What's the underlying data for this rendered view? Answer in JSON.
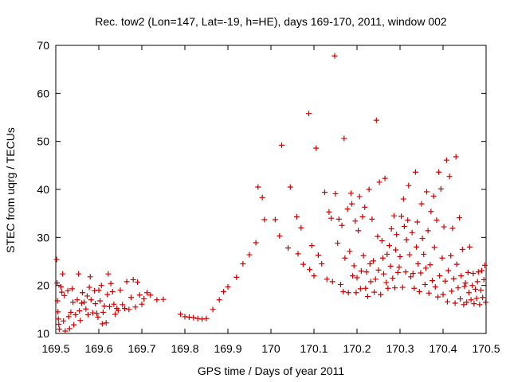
{
  "chart_data": {
    "type": "scatter",
    "title": "Rec. tow2 (Lon=147, Lat=-19, h=HE), days 169-170, 2011, window 002",
    "xlabel": "GPS time / Days of year 2011",
    "ylabel": "STEC from uqrg / TECUs",
    "xlim": [
      169.5,
      170.5
    ],
    "ylim": [
      10,
      70
    ],
    "x_ticks": [
      "169.5",
      "169.6",
      "169.7",
      "169.8",
      "169.9",
      "170",
      "170.1",
      "170.2",
      "170.3",
      "170.4",
      "170.5"
    ],
    "y_ticks": [
      "10",
      "20",
      "30",
      "40",
      "50",
      "60",
      "70"
    ],
    "grid": false,
    "legend": "none",
    "marker": "plus",
    "color": "#cc0000",
    "points": [
      [
        169.502,
        25.4
      ],
      [
        169.503,
        20.5
      ],
      [
        169.504,
        16.8
      ],
      [
        169.505,
        14.5
      ],
      [
        169.506,
        13.0
      ],
      [
        169.507,
        11.9
      ],
      [
        169.508,
        10.9
      ],
      [
        169.512,
        19.7
      ],
      [
        169.514,
        18.6
      ],
      [
        169.516,
        22.4
      ],
      [
        169.518,
        12.6
      ],
      [
        169.52,
        17.9
      ],
      [
        169.522,
        10.5
      ],
      [
        169.528,
        18.9
      ],
      [
        169.53,
        13.5
      ],
      [
        169.532,
        11.0
      ],
      [
        169.535,
        14.4
      ],
      [
        169.538,
        19.3
      ],
      [
        169.54,
        16.5
      ],
      [
        169.542,
        11.8
      ],
      [
        169.546,
        13.9
      ],
      [
        169.55,
        17.0
      ],
      [
        169.553,
        22.4
      ],
      [
        169.555,
        14.7
      ],
      [
        169.557,
        12.7
      ],
      [
        169.56,
        16.3
      ],
      [
        169.562,
        18.5
      ],
      [
        169.566,
        16.5
      ],
      [
        169.57,
        15.1
      ],
      [
        169.573,
        17.8
      ],
      [
        169.575,
        13.9
      ],
      [
        169.578,
        19.6
      ],
      [
        169.58,
        21.8
      ],
      [
        169.582,
        17.0
      ],
      [
        169.586,
        14.3
      ],
      [
        169.59,
        18.9
      ],
      [
        169.592,
        16.2
      ],
      [
        169.595,
        14.2
      ],
      [
        169.598,
        13.4
      ],
      [
        169.6,
        19.0
      ],
      [
        169.603,
        16.8
      ],
      [
        169.606,
        20.0
      ],
      [
        169.608,
        12.0
      ],
      [
        169.61,
        14.4
      ],
      [
        169.613,
        15.7
      ],
      [
        169.617,
        12.2
      ],
      [
        169.62,
        18.1
      ],
      [
        169.622,
        22.4
      ],
      [
        169.625,
        15.6
      ],
      [
        169.628,
        20.4
      ],
      [
        169.632,
        18.7
      ],
      [
        169.635,
        16.1
      ],
      [
        169.638,
        14.0
      ],
      [
        169.642,
        15.2
      ],
      [
        169.645,
        14.8
      ],
      [
        169.65,
        19.0
      ],
      [
        169.655,
        16.0
      ],
      [
        169.66,
        15.2
      ],
      [
        169.665,
        20.8
      ],
      [
        169.67,
        15.0
      ],
      [
        169.675,
        17.5
      ],
      [
        169.68,
        21.2
      ],
      [
        169.685,
        15.5
      ],
      [
        169.69,
        20.7
      ],
      [
        169.695,
        18.0
      ],
      [
        169.7,
        16.1
      ],
      [
        169.705,
        17.2
      ],
      [
        169.712,
        18.5
      ],
      [
        169.72,
        18.0
      ],
      [
        169.735,
        17.0
      ],
      [
        169.75,
        17.1
      ],
      [
        169.79,
        14.0
      ],
      [
        169.8,
        13.5
      ],
      [
        169.81,
        13.4
      ],
      [
        169.82,
        13.3
      ],
      [
        169.83,
        13.1
      ],
      [
        169.84,
        13.0
      ],
      [
        169.85,
        13.1
      ],
      [
        169.865,
        15.0
      ],
      [
        169.88,
        17.0
      ],
      [
        169.89,
        18.7
      ],
      [
        169.9,
        19.7
      ],
      [
        169.92,
        21.7
      ],
      [
        169.935,
        24.5
      ],
      [
        169.95,
        26.4
      ],
      [
        169.965,
        28.9
      ],
      [
        169.97,
        40.5
      ],
      [
        169.98,
        38.3
      ],
      [
        169.985,
        33.7
      ],
      [
        170.01,
        33.7
      ],
      [
        170.02,
        30.3
      ],
      [
        170.025,
        49.2
      ],
      [
        170.04,
        27.8
      ],
      [
        170.045,
        40.5
      ],
      [
        170.06,
        34.3
      ],
      [
        170.063,
        26.6
      ],
      [
        170.07,
        32.0
      ],
      [
        170.075,
        24.4
      ],
      [
        170.088,
        55.8
      ],
      [
        170.09,
        23.3
      ],
      [
        170.095,
        28.3
      ],
      [
        170.1,
        22.0
      ],
      [
        170.105,
        48.6
      ],
      [
        170.11,
        26.3
      ],
      [
        170.118,
        24.5
      ],
      [
        170.125,
        39.4
      ],
      [
        170.13,
        21.3
      ],
      [
        170.135,
        35.3
      ],
      [
        170.14,
        34.0
      ],
      [
        170.143,
        20.8
      ],
      [
        170.148,
        67.8
      ],
      [
        170.15,
        39.1
      ],
      [
        170.155,
        28.8
      ],
      [
        170.158,
        33.8
      ],
      [
        170.162,
        20.2
      ],
      [
        170.165,
        32.5
      ],
      [
        170.168,
        18.7
      ],
      [
        170.17,
        50.6
      ],
      [
        170.172,
        25.7
      ],
      [
        170.178,
        35.9
      ],
      [
        170.18,
        18.5
      ],
      [
        170.183,
        27.1
      ],
      [
        170.186,
        39.2
      ],
      [
        170.188,
        37.0
      ],
      [
        170.19,
        22.0
      ],
      [
        170.193,
        24.1
      ],
      [
        170.196,
        33.4
      ],
      [
        170.198,
        18.5
      ],
      [
        170.2,
        21.6
      ],
      [
        170.203,
        31.4
      ],
      [
        170.206,
        38.5
      ],
      [
        170.208,
        19.3
      ],
      [
        170.21,
        23.0
      ],
      [
        170.213,
        34.3
      ],
      [
        170.215,
        26.2
      ],
      [
        170.218,
        36.3
      ],
      [
        170.22,
        19.4
      ],
      [
        170.222,
        22.8
      ],
      [
        170.225,
        17.7
      ],
      [
        170.228,
        40.0
      ],
      [
        170.23,
        24.5
      ],
      [
        170.232,
        20.8
      ],
      [
        170.235,
        33.8
      ],
      [
        170.238,
        25.1
      ],
      [
        170.24,
        18.6
      ],
      [
        170.243,
        21.3
      ],
      [
        170.245,
        54.4
      ],
      [
        170.248,
        30.2
      ],
      [
        170.25,
        23.2
      ],
      [
        170.252,
        41.5
      ],
      [
        170.255,
        18.1
      ],
      [
        170.258,
        29.3
      ],
      [
        170.26,
        25.7
      ],
      [
        170.262,
        22.4
      ],
      [
        170.265,
        42.3
      ],
      [
        170.268,
        20.6
      ],
      [
        170.27,
        26.5
      ],
      [
        170.272,
        19.4
      ],
      [
        170.275,
        28.3
      ],
      [
        170.278,
        24.0
      ],
      [
        170.28,
        31.8
      ],
      [
        170.283,
        21.5
      ],
      [
        170.286,
        34.5
      ],
      [
        170.288,
        19.5
      ],
      [
        170.29,
        27.4
      ],
      [
        170.292,
        30.6
      ],
      [
        170.295,
        22.7
      ],
      [
        170.298,
        23.8
      ],
      [
        170.3,
        26.0
      ],
      [
        170.303,
        34.4
      ],
      [
        170.306,
        19.6
      ],
      [
        170.308,
        38.0
      ],
      [
        170.31,
        32.3
      ],
      [
        170.313,
        22.8
      ],
      [
        170.315,
        29.5
      ],
      [
        170.318,
        33.6
      ],
      [
        170.32,
        40.8
      ],
      [
        170.322,
        26.4
      ],
      [
        170.325,
        21.8
      ],
      [
        170.328,
        31.0
      ],
      [
        170.33,
        22.5
      ],
      [
        170.333,
        19.4
      ],
      [
        170.336,
        43.6
      ],
      [
        170.338,
        28.0
      ],
      [
        170.34,
        33.2
      ],
      [
        170.342,
        24.5
      ],
      [
        170.345,
        18.7
      ],
      [
        170.348,
        22.6
      ],
      [
        170.35,
        37.0
      ],
      [
        170.352,
        29.8
      ],
      [
        170.355,
        26.5
      ],
      [
        170.358,
        20.2
      ],
      [
        170.36,
        23.6
      ],
      [
        170.362,
        39.5
      ],
      [
        170.365,
        31.4
      ],
      [
        170.367,
        18.4
      ],
      [
        170.37,
        24.3
      ],
      [
        170.372,
        35.4
      ],
      [
        170.375,
        21.0
      ],
      [
        170.378,
        38.6
      ],
      [
        170.38,
        27.9
      ],
      [
        170.382,
        19.7
      ],
      [
        170.385,
        33.6
      ],
      [
        170.388,
        17.6
      ],
      [
        170.39,
        43.6
      ],
      [
        170.392,
        22.0
      ],
      [
        170.395,
        40.1
      ],
      [
        170.398,
        25.7
      ],
      [
        170.4,
        18.1
      ],
      [
        170.402,
        32.2
      ],
      [
        170.405,
        20.9
      ],
      [
        170.408,
        46.1
      ],
      [
        170.41,
        16.6
      ],
      [
        170.412,
        23.1
      ],
      [
        170.415,
        42.7
      ],
      [
        170.418,
        26.2
      ],
      [
        170.42,
        18.8
      ],
      [
        170.422,
        31.9
      ],
      [
        170.425,
        21.4
      ],
      [
        170.428,
        16.3
      ],
      [
        170.43,
        46.8
      ],
      [
        170.432,
        24.4
      ],
      [
        170.435,
        19.5
      ],
      [
        170.438,
        34.1
      ],
      [
        170.44,
        17.2
      ],
      [
        170.442,
        22.0
      ],
      [
        170.445,
        27.5
      ],
      [
        170.448,
        16.0
      ],
      [
        170.45,
        19.8
      ],
      [
        170.452,
        20.5
      ],
      [
        170.455,
        16.5
      ],
      [
        170.458,
        22.7
      ],
      [
        170.46,
        18.5
      ],
      [
        170.462,
        28.0
      ],
      [
        170.465,
        17.0
      ],
      [
        170.468,
        20.0
      ],
      [
        170.47,
        22.5
      ],
      [
        170.472,
        16.2
      ],
      [
        170.475,
        19.2
      ],
      [
        170.478,
        17.3
      ],
      [
        170.48,
        20.8
      ],
      [
        170.482,
        22.8
      ],
      [
        170.485,
        16.0
      ],
      [
        170.488,
        19.0
      ],
      [
        170.49,
        23.1
      ],
      [
        170.492,
        17.5
      ],
      [
        170.495,
        21.2
      ],
      [
        170.497,
        24.2
      ],
      [
        170.499,
        16.5
      ]
    ]
  }
}
